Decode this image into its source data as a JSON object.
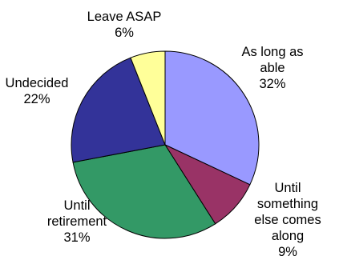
{
  "chart_data": {
    "type": "pie",
    "title": "",
    "slices": [
      {
        "label": [
          "As long as",
          "able",
          "32%"
        ],
        "value": 32,
        "color": "#9999ff"
      },
      {
        "label": [
          "Until",
          "something",
          "else comes",
          "along",
          "9%"
        ],
        "value": 9,
        "color": "#993366"
      },
      {
        "label": [
          "Until",
          "retirement",
          "31%"
        ],
        "value": 31,
        "color": "#339966"
      },
      {
        "label": [
          "Undecided",
          "22%"
        ],
        "value": 22,
        "color": "#333399"
      },
      {
        "label": [
          "Leave ASAP",
          "6%"
        ],
        "value": 6,
        "color": "#ffff99"
      }
    ]
  }
}
